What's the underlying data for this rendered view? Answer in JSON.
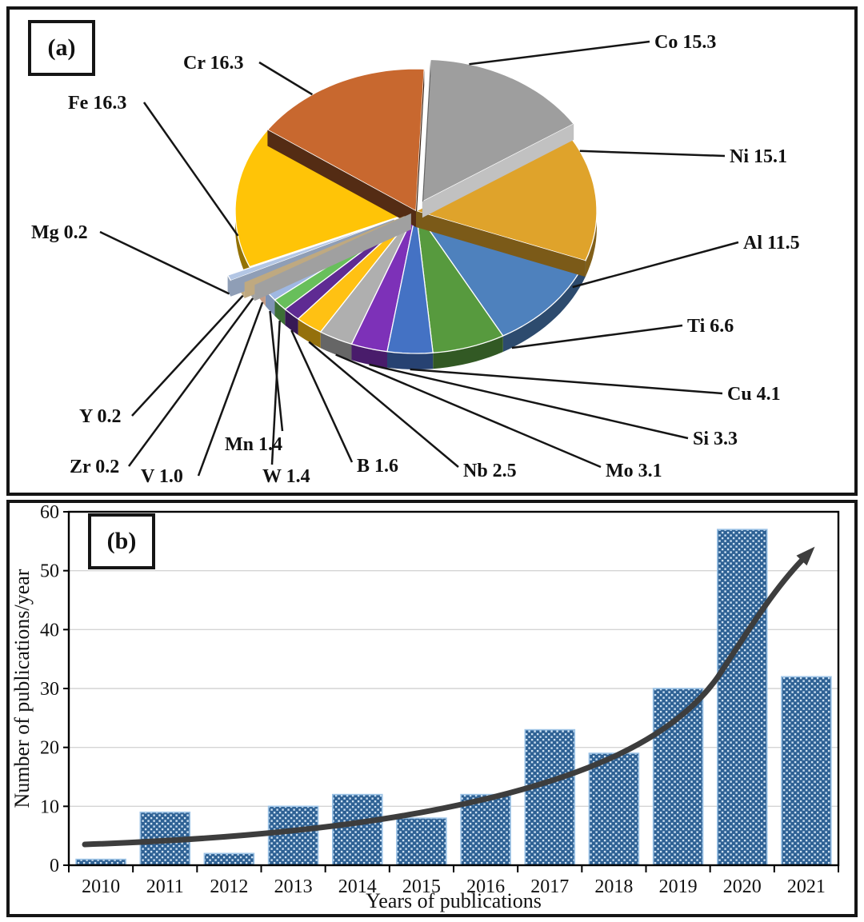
{
  "figure": {
    "panel_a_label": "(a)",
    "panel_b_label": "(b)"
  },
  "chart_data": [
    {
      "type": "pie",
      "panel": "a",
      "style": "3d exploded pie, labels with leader lines, clockwise from top",
      "slices": [
        {
          "element": "Co",
          "value": 15.3,
          "label": "Co 15.3",
          "color": "#9E9E9E"
        },
        {
          "element": "Ni",
          "value": 15.1,
          "label": "Ni 15.1",
          "color": "#DFA32B"
        },
        {
          "element": "Al",
          "value": 11.5,
          "label": "Al 11.5",
          "color": "#4E81BD"
        },
        {
          "element": "Ti",
          "value": 6.6,
          "label": "Ti 6.6",
          "color": "#579A3E"
        },
        {
          "element": "Cu",
          "value": 4.1,
          "label": "Cu 4.1",
          "color": "#4472C4"
        },
        {
          "element": "Si",
          "value": 3.3,
          "label": "Si 3.3",
          "color": "#7D31B8"
        },
        {
          "element": "Mo",
          "value": 3.1,
          "label": "Mo 3.1",
          "color": "#AFAFAF"
        },
        {
          "element": "Nb",
          "value": 2.5,
          "label": "Nb 2.5",
          "color": "#FFC113"
        },
        {
          "element": "B",
          "value": 1.6,
          "label": "B 1.6",
          "color": "#5F2B93"
        },
        {
          "element": "W",
          "value": 1.4,
          "label": "W 1.4",
          "color": "#68BF5B"
        },
        {
          "element": "Mn",
          "value": 1.4,
          "label": "Mn 1.4",
          "color": "#9FB8E2"
        },
        {
          "element": "V",
          "value": 1.0,
          "label": "V 1.0",
          "color": "#F6C3A7"
        },
        {
          "element": "Zr",
          "value": 0.2,
          "label": "Zr 0.2",
          "color": "#C8C8C8"
        },
        {
          "element": "Y",
          "value": 0.2,
          "label": "Y 0.2",
          "color": "#EFD3A0"
        },
        {
          "element": "Mg",
          "value": 0.2,
          "label": "Mg 0.2",
          "color": "#B3C6E4"
        },
        {
          "element": "Fe",
          "value": 16.3,
          "label": "Fe 16.3",
          "color": "#FFC407"
        },
        {
          "element": "Cr",
          "value": 16.3,
          "label": "Cr 16.3",
          "color": "#C8682F"
        }
      ]
    },
    {
      "type": "bar",
      "panel": "b",
      "categories": [
        "2010",
        "2011",
        "2012",
        "2013",
        "2014",
        "2015",
        "2016",
        "2017",
        "2018",
        "2019",
        "2020",
        "2021"
      ],
      "values": [
        1,
        9,
        2,
        10,
        12,
        8,
        12,
        23,
        19,
        30,
        57,
        32
      ],
      "xlabel": "Years of publications",
      "ylabel": "Number of publications/year",
      "ylim": [
        0,
        60
      ],
      "yticks": [
        0,
        10,
        20,
        30,
        40,
        50,
        60
      ],
      "grid": true,
      "gridline_color": "#D4D4D4",
      "bar_color": "#2E6194",
      "bar_pattern": "light dotted squares",
      "bar_pattern_color": "#CFE2F3",
      "bar_border_color": "#9CC3E6",
      "trend_arrow": true,
      "trend_arrow_color": "#3D3D3D",
      "legend": false
    }
  ]
}
